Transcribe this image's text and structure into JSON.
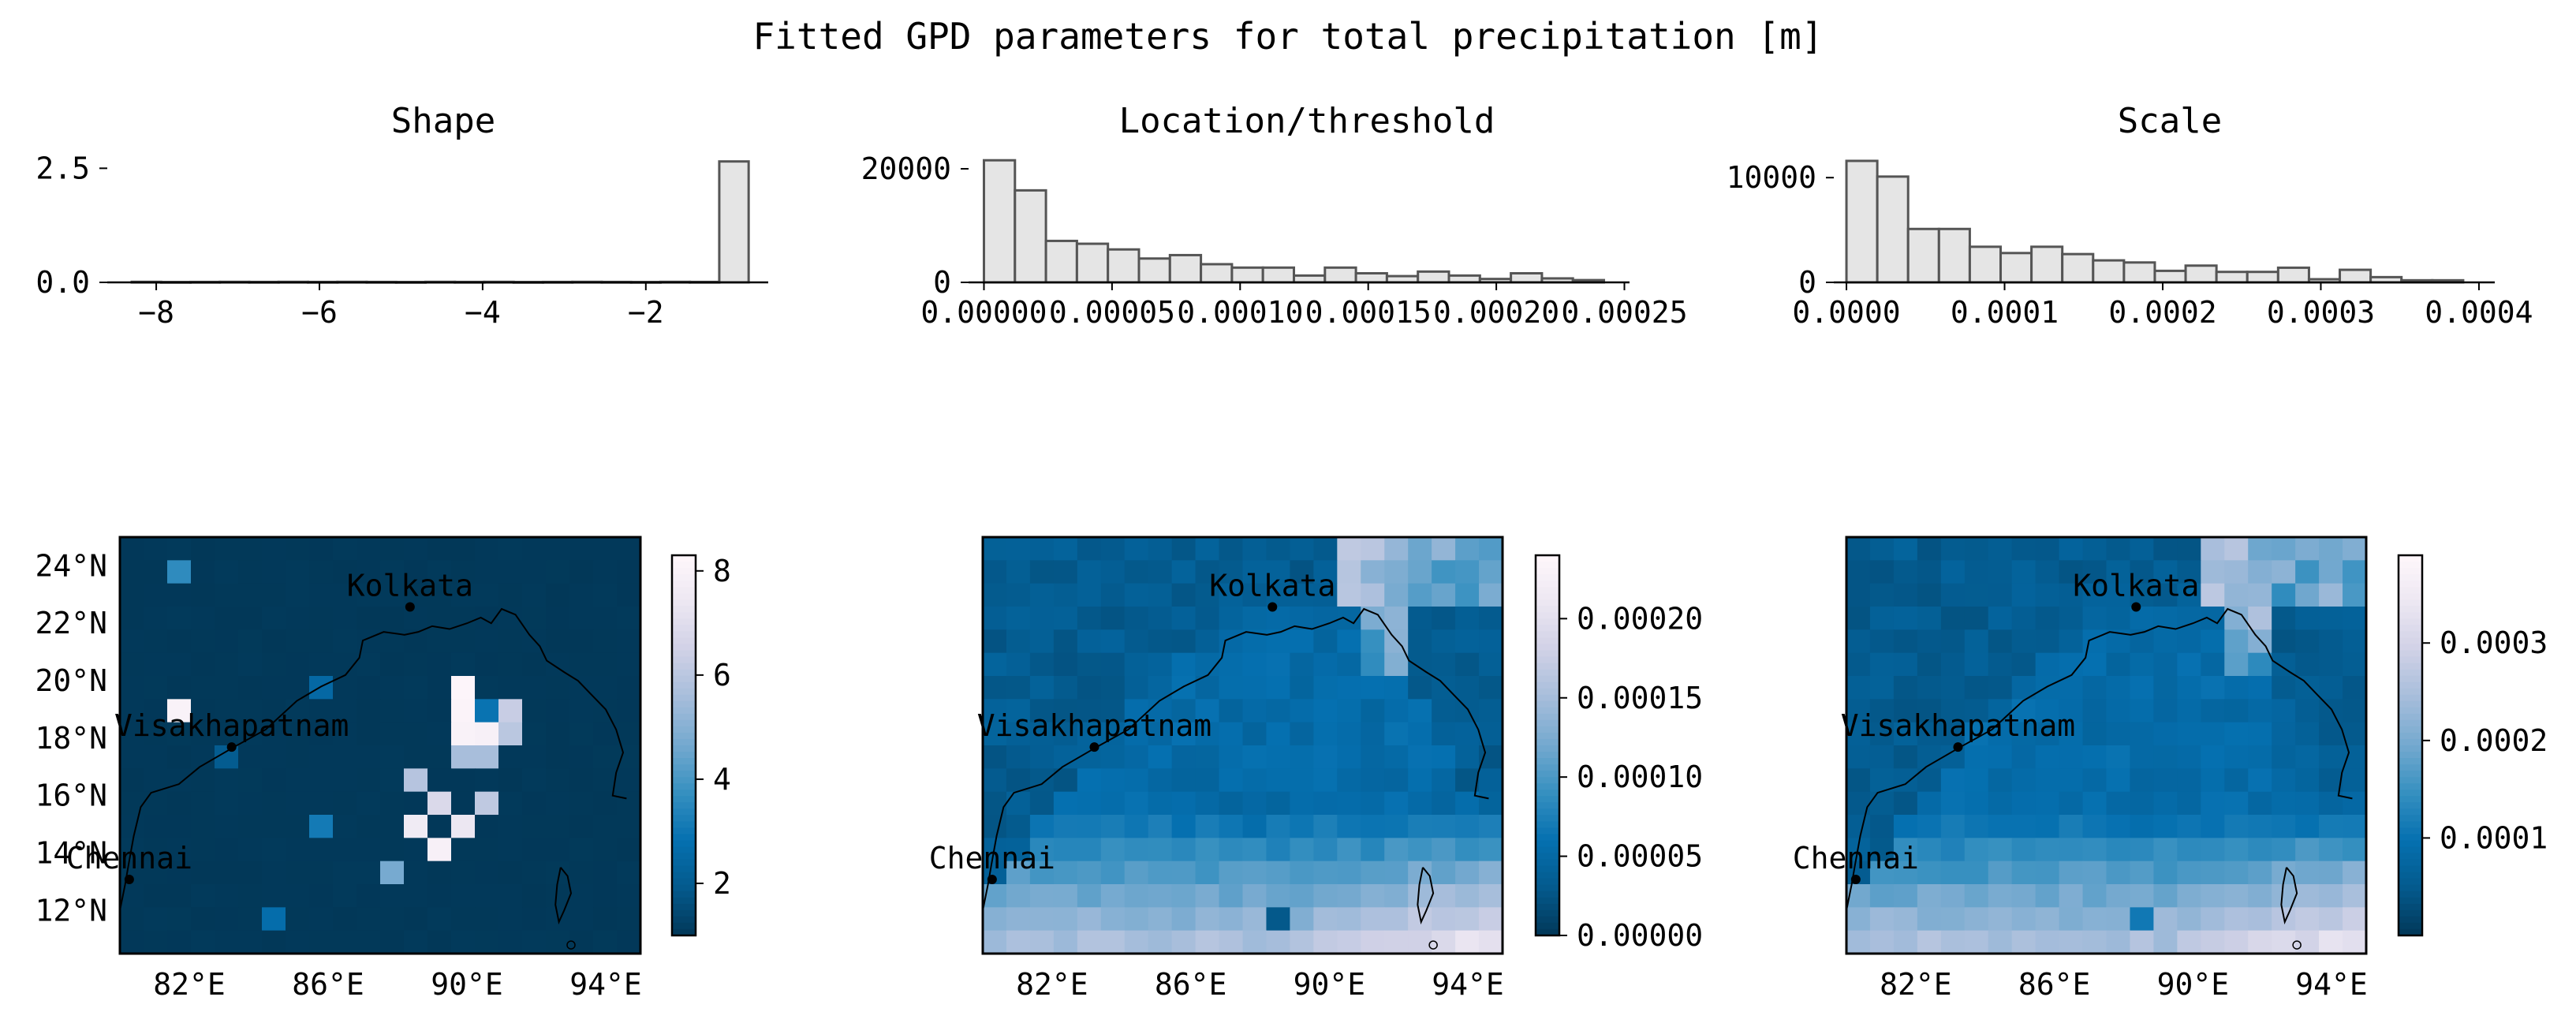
{
  "figure": {
    "suptitle": "Fitted GPD parameters for total precipitation [m]"
  },
  "chart_data": [
    {
      "type": "bar",
      "panel": "histogram",
      "title": "Shape",
      "xlim": [
        -8.6,
        -0.5
      ],
      "ylim": [
        0,
        2.8
      ],
      "xticks": [
        -8,
        -6,
        -4,
        -2
      ],
      "xtick_labels": [
        "−8",
        "−6",
        "−4",
        "−2"
      ],
      "yticks": [
        0,
        2.5
      ],
      "ytick_labels": [
        "0.0",
        "2.5"
      ],
      "bin_edges": [
        -8.3,
        -7.94,
        -7.58,
        -7.22,
        -6.86,
        -6.5,
        -6.14,
        -5.78,
        -5.42,
        -5.06,
        -4.7,
        -4.34,
        -3.98,
        -3.62,
        -3.26,
        -2.9,
        -2.54,
        -2.18,
        -1.82,
        -1.46,
        -1.1,
        -0.74
      ],
      "values": [
        0.012,
        0.008,
        0.01,
        0.012,
        0.01,
        0.012,
        0.01,
        0.012,
        0.01,
        0.008,
        0.012,
        0.01,
        0.012,
        0.008,
        0.01,
        0.012,
        0.01,
        0.008,
        0.012,
        0.01,
        2.65
      ],
      "bar_fill": "#e5e5e5",
      "bar_edge": "#555555"
    },
    {
      "type": "bar",
      "panel": "histogram",
      "title": "Location/threshold",
      "xlim": [
        -6e-06,
        0.000252
      ],
      "ylim": [
        0,
        22500
      ],
      "xticks": [
        0.0,
        5e-05,
        0.0001,
        0.00015,
        0.0002,
        0.00025
      ],
      "xtick_labels": [
        "0.00000",
        "0.00005",
        "0.00010",
        "0.00015",
        "0.00020",
        "0.00025"
      ],
      "yticks": [
        0,
        20000
      ],
      "ytick_labels": [
        "0",
        "20000"
      ],
      "bin_edges": [
        0.0,
        1.21e-05,
        2.42e-05,
        3.63e-05,
        4.84e-05,
        6.05e-05,
        7.26e-05,
        8.47e-05,
        9.68e-05,
        0.0001089,
        0.000121,
        0.0001331,
        0.0001452,
        0.0001573,
        0.0001694,
        0.0001815,
        0.0001936,
        0.0002057,
        0.0002178,
        0.0002299,
        0.000242
      ],
      "values": [
        21500,
        16200,
        7300,
        6800,
        5800,
        4200,
        4800,
        3200,
        2600,
        2600,
        1200,
        2600,
        1600,
        1100,
        1900,
        1200,
        600,
        1600,
        700,
        400
      ],
      "bar_fill": "#e5e5e5",
      "bar_edge": "#555555"
    },
    {
      "type": "bar",
      "panel": "histogram",
      "title": "Scale",
      "xlim": [
        -8e-06,
        0.00041
      ],
      "ylim": [
        0,
        12200
      ],
      "xticks": [
        0.0,
        0.0001,
        0.0002,
        0.0003,
        0.0004
      ],
      "xtick_labels": [
        "0.0000",
        "0.0001",
        "0.0002",
        "0.0003",
        "0.0004"
      ],
      "yticks": [
        0,
        10000
      ],
      "ytick_labels": [
        "0",
        "10000"
      ],
      "bin_edges": [
        0.0,
        1.95e-05,
        3.9e-05,
        5.85e-05,
        7.8e-05,
        9.75e-05,
        0.000117,
        0.0001365,
        0.000156,
        0.0001755,
        0.000195,
        0.0002145,
        0.000234,
        0.0002535,
        0.000273,
        0.0002925,
        0.000312,
        0.0003315,
        0.000351,
        0.0003705,
        0.00039
      ],
      "values": [
        11600,
        10100,
        5100,
        5100,
        3400,
        2800,
        3400,
        2700,
        2100,
        1900,
        1100,
        1600,
        1000,
        1000,
        1400,
        300,
        1200,
        500,
        200,
        200
      ],
      "bar_fill": "#e5e5e5",
      "bar_edge": "#555555"
    },
    {
      "type": "heatmap",
      "panel": "map",
      "title": "",
      "colormap": "PuBu_r",
      "colormap_stops": [
        "#023858",
        "#045a8d",
        "#0570b0",
        "#3690c0",
        "#74a9cf",
        "#a6bddb",
        "#d0d1e6",
        "#ece7f2",
        "#fff7fb"
      ],
      "lon_range": [
        80,
        95
      ],
      "lat_range": [
        10.5,
        25
      ],
      "lon_ticks": [
        "82°E",
        "86°E",
        "90°E",
        "94°E"
      ],
      "lat_ticks": [
        "12°N",
        "14°N",
        "16°N",
        "18°N",
        "20°N",
        "22°N",
        "24°N"
      ],
      "grid_cols": 22,
      "grid_rows": 18,
      "vmin": 1.0,
      "vmax": 8.3,
      "colorbar_ticks": [
        2,
        4,
        6,
        8
      ],
      "colorbar_tick_labels": [
        "2",
        "4",
        "6",
        "8"
      ],
      "cities": [
        {
          "name": "Kolkata",
          "lon": 88.36,
          "lat": 22.57
        },
        {
          "name": "Visakhapatnam",
          "lon": 83.22,
          "lat": 17.69
        },
        {
          "name": "Chennai",
          "lon": 80.27,
          "lat": 13.08
        }
      ],
      "field": "shape"
    },
    {
      "type": "heatmap",
      "panel": "map",
      "title": "",
      "colormap": "PuBu_r",
      "lon_range": [
        80,
        95
      ],
      "lat_range": [
        10.5,
        25
      ],
      "lon_ticks": [
        "82°E",
        "86°E",
        "90°E",
        "94°E"
      ],
      "lat_ticks": [],
      "grid_cols": 22,
      "grid_rows": 18,
      "vmin": 0.0,
      "vmax": 0.00024,
      "colorbar_ticks": [
        0.0,
        5e-05,
        0.0001,
        0.00015,
        0.0002
      ],
      "colorbar_tick_labels": [
        "0.00000",
        "0.00005",
        "0.00010",
        "0.00015",
        "0.00020"
      ],
      "cities": [
        {
          "name": "Kolkata",
          "lon": 88.36,
          "lat": 22.57
        },
        {
          "name": "Visakhapatnam",
          "lon": 83.22,
          "lat": 17.69
        },
        {
          "name": "Chennai",
          "lon": 80.27,
          "lat": 13.08
        }
      ],
      "field": "location"
    },
    {
      "type": "heatmap",
      "panel": "map",
      "title": "",
      "colormap": "PuBu_r",
      "lon_range": [
        80,
        95
      ],
      "lat_range": [
        10.5,
        25
      ],
      "lon_ticks": [
        "82°E",
        "86°E",
        "90°E",
        "94°E"
      ],
      "lat_ticks": [],
      "grid_cols": 22,
      "grid_rows": 18,
      "vmin": 0.0,
      "vmax": 0.00039,
      "colorbar_ticks": [
        0.0001,
        0.0002,
        0.0003
      ],
      "colorbar_tick_labels": [
        "0.0001",
        "0.0002",
        "0.0003"
      ],
      "cities": [
        {
          "name": "Kolkata",
          "lon": 88.36,
          "lat": 22.57
        },
        {
          "name": "Visakhapatnam",
          "lon": 83.22,
          "lat": 17.69
        },
        {
          "name": "Chennai",
          "lon": 80.27,
          "lat": 13.08
        }
      ],
      "field": "scale"
    }
  ]
}
